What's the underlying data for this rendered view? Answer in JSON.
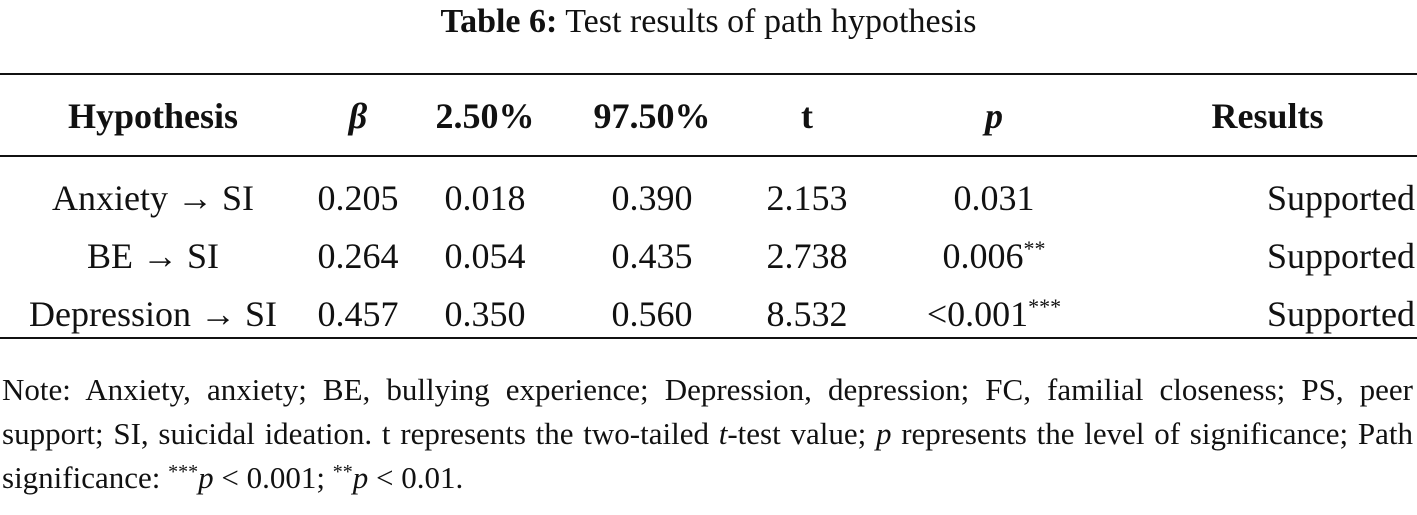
{
  "caption": {
    "label": "Table 6:",
    "title": "Test results of path hypothesis"
  },
  "table": {
    "headers": {
      "hypothesis": "Hypothesis",
      "beta": "β",
      "ci_low": "2.50%",
      "ci_high": "97.50%",
      "t": "t",
      "p": "p",
      "results": "Results"
    },
    "rows": [
      {
        "hypothesis": "Anxiety → SI",
        "beta": "0.205",
        "ci_low": "0.018",
        "ci_high": "0.390",
        "t": "2.153",
        "p": "0.031",
        "p_sig": "",
        "results": "Supported"
      },
      {
        "hypothesis": "BE → SI",
        "beta": "0.264",
        "ci_low": "0.054",
        "ci_high": "0.435",
        "t": "2.738",
        "p": "0.006",
        "p_sig": "**",
        "results": "Supported"
      },
      {
        "hypothesis": "Depression → SI",
        "beta": "0.457",
        "ci_low": "0.350",
        "ci_high": "0.560",
        "t": "8.532",
        "p": "<0.001",
        "p_sig": "***",
        "results": "Supported"
      }
    ]
  },
  "note": {
    "part1": "Note: Anxiety, anxiety; BE, bullying experience; Depression, depression; FC, familial closeness; PS, peer support; SI, suicidal ideation. t represents the two-tailed ",
    "t_symbol": "t",
    "part2": "-test value; ",
    "p_symbol": "p",
    "part3": " represents the level of significance; Path significance: ",
    "sig3_stars": "***",
    "sig3_p": "p",
    "sig3_text": " < 0.001; ",
    "sig2_stars": "**",
    "sig2_p": "p",
    "sig2_text": " < 0.01."
  }
}
